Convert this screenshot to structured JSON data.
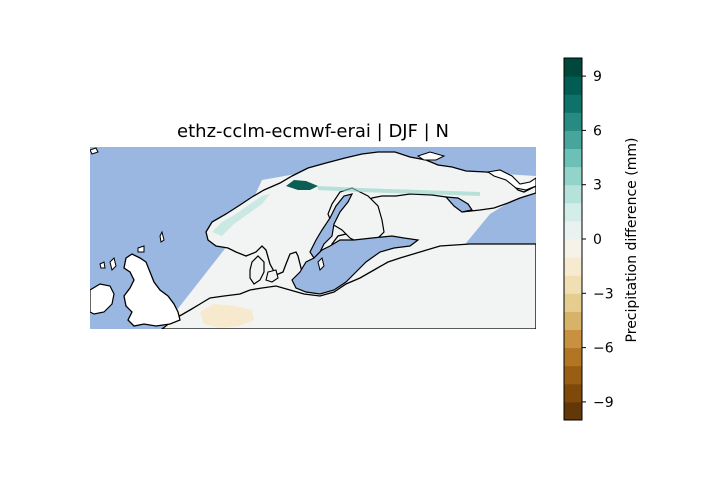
{
  "title": "ethz-cclm-ecmwf-erai | DJF | N",
  "colorbar": {
    "label": "Precipitation difference (mm)",
    "range": [
      -10,
      10
    ],
    "step": 1,
    "ticks": [
      -9,
      -6,
      -3,
      0,
      3,
      6,
      9
    ],
    "tick_labels": [
      "−9",
      "−6",
      "−3",
      "0",
      "3",
      "6",
      "9"
    ],
    "colormap": "BrBG"
  },
  "map": {
    "region": "Scandinavia / Northern Europe",
    "ocean_color": "#99b7e1",
    "land_color": "#ffffff",
    "coastline_color": "#000000"
  }
}
